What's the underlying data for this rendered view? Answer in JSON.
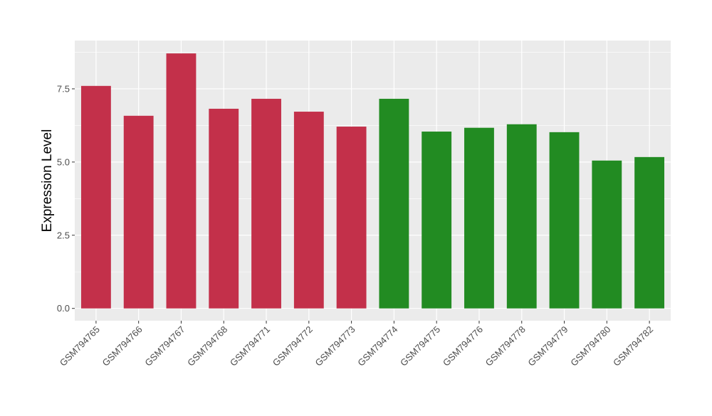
{
  "chart_data": {
    "type": "bar",
    "title": "",
    "xlabel": "",
    "ylabel": "Expression Level",
    "ylim": [
      -0.42,
      9.15
    ],
    "yticks": [
      0.0,
      2.5,
      5.0,
      7.5
    ],
    "ytick_labels": [
      "0.0",
      "2.5",
      "5.0",
      "7.5"
    ],
    "grid": true,
    "categories": [
      "GSM794765",
      "GSM794766",
      "GSM794767",
      "GSM794768",
      "GSM794771",
      "GSM794772",
      "GSM794773",
      "GSM794774",
      "GSM794775",
      "GSM794776",
      "GSM794778",
      "GSM794779",
      "GSM794780",
      "GSM794782"
    ],
    "values": [
      7.6,
      6.58,
      8.71,
      6.82,
      7.16,
      6.72,
      6.21,
      7.16,
      6.04,
      6.17,
      6.29,
      6.02,
      5.05,
      5.17
    ],
    "groups": [
      "a",
      "a",
      "a",
      "a",
      "a",
      "a",
      "a",
      "b",
      "b",
      "b",
      "b",
      "b",
      "b",
      "b"
    ],
    "colors": {
      "a": "#C3304A",
      "b": "#228B22"
    }
  }
}
